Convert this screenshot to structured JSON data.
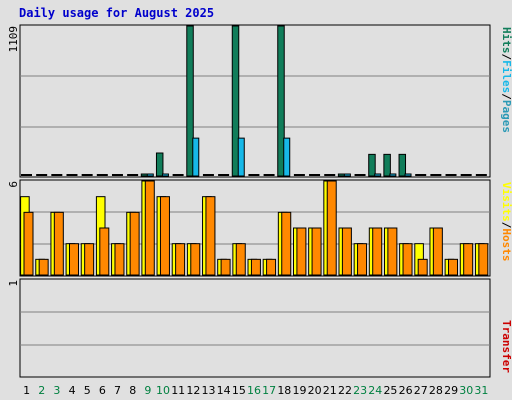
{
  "chart_data": {
    "type": "bar",
    "title": "Daily usage for August 2025",
    "colors": {
      "hits": "#117d5a",
      "files": "#17b8e8",
      "pages": "#2a99b5",
      "hosts": "#ff8800",
      "visits": "#ffff00",
      "transfer": "#cc0000",
      "weekend_day": "#008040",
      "weekday_day": "#000000",
      "background": "#e0e0e0",
      "grid": "#808080",
      "title": "#0000cc"
    },
    "categories": [
      "1",
      "2",
      "3",
      "4",
      "5",
      "6",
      "7",
      "8",
      "9",
      "10",
      "11",
      "12",
      "13",
      "14",
      "15",
      "16",
      "17",
      "18",
      "19",
      "20",
      "21",
      "22",
      "23",
      "24",
      "25",
      "26",
      "27",
      "28",
      "29",
      "30",
      "31"
    ],
    "weekend_days": [
      2,
      3,
      9,
      10,
      16,
      17,
      23,
      24,
      30,
      31
    ],
    "panels": [
      {
        "id": "hits-files-pages",
        "ylabel_parts": [
          {
            "text": "Hits",
            "color_key": "hits"
          },
          {
            "text": "/",
            "color_key": "weekday_day"
          },
          {
            "text": "Files",
            "color_key": "files"
          },
          {
            "text": "/",
            "color_key": "weekday_day"
          },
          {
            "text": "Pages",
            "color_key": "pages"
          }
        ],
        "ymax_label": "1109",
        "ylim": [
          0,
          1109
        ],
        "series": [
          {
            "name": "Hits",
            "color_key": "hits",
            "values": [
              0,
              0,
              0,
              0,
              0,
              0,
              0,
              0,
              10,
              170,
              0,
              1109,
              0,
              0,
              1109,
              0,
              0,
              1109,
              0,
              0,
              0,
              10,
              0,
              160,
              160,
              160,
              0,
              0,
              0,
              0,
              0
            ]
          },
          {
            "name": "Files",
            "color_key": "files",
            "values": [
              0,
              0,
              0,
              0,
              0,
              0,
              0,
              0,
              5,
              10,
              0,
              280,
              0,
              0,
              280,
              0,
              0,
              280,
              0,
              0,
              0,
              5,
              0,
              15,
              15,
              15,
              0,
              0,
              0,
              0,
              0
            ]
          },
          {
            "name": "Pages",
            "color_key": "pages",
            "values": [
              0,
              0,
              0,
              0,
              0,
              0,
              0,
              0,
              0,
              0,
              0,
              0,
              0,
              0,
              0,
              0,
              0,
              0,
              0,
              0,
              0,
              0,
              0,
              0,
              0,
              0,
              0,
              0,
              0,
              0,
              0
            ]
          }
        ]
      },
      {
        "id": "visits-hosts",
        "ylabel_parts": [
          {
            "text": "Visits",
            "color_key": "visits"
          },
          {
            "text": "/",
            "color_key": "weekday_day"
          },
          {
            "text": "Hosts",
            "color_key": "hosts"
          }
        ],
        "ymax_label": "6",
        "ylim": [
          0,
          6
        ],
        "series": [
          {
            "name": "Visits",
            "color_key": "visits",
            "values": [
              5,
              1,
              4,
              2,
              2,
              5,
              2,
              4,
              6,
              5,
              2,
              2,
              5,
              1,
              2,
              1,
              1,
              4,
              3,
              3,
              6,
              3,
              2,
              3,
              3,
              2,
              2,
              3,
              1,
              2,
              2
            ]
          },
          {
            "name": "Hosts",
            "color_key": "hosts",
            "values": [
              4,
              1,
              4,
              2,
              2,
              3,
              2,
              4,
              6,
              5,
              2,
              2,
              5,
              1,
              2,
              1,
              1,
              4,
              3,
              3,
              6,
              3,
              2,
              3,
              3,
              2,
              1,
              3,
              1,
              2,
              2
            ]
          }
        ]
      },
      {
        "id": "transfer",
        "ylabel_parts": [
          {
            "text": "Transfer",
            "color_key": "transfer"
          }
        ],
        "ymax_label": "1",
        "ylim": [
          0,
          1
        ],
        "series": [
          {
            "name": "Transfer",
            "color_key": "transfer",
            "values": [
              0,
              0,
              0,
              0,
              0,
              0,
              0,
              0,
              0,
              0,
              0,
              0,
              0,
              0,
              0,
              0,
              0,
              0,
              0,
              0,
              0,
              0,
              0,
              0,
              0,
              0,
              0,
              0,
              0,
              0,
              0
            ]
          }
        ]
      }
    ]
  }
}
